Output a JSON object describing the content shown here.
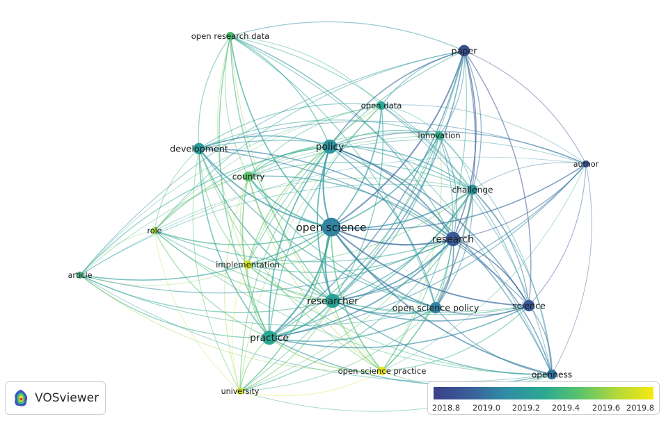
{
  "branding": {
    "app_name": "VOSviewer",
    "logo_icon": "vosviewer-density-logo-icon"
  },
  "colors": {
    "background": "#ffffff",
    "scale": [
      "#3b3f86",
      "#3a5f9b",
      "#2f8ea4",
      "#2ba893",
      "#5cc36b",
      "#b2d93b",
      "#f6e80f"
    ]
  },
  "legend": {
    "ticks": [
      "2018.8",
      "2019.0",
      "2019.2",
      "2019.4",
      "2019.6",
      "2019.8"
    ],
    "min": 2018.7,
    "max": 2019.9
  },
  "nodes": [
    {
      "id": "open research data",
      "label": "open research data",
      "year": 2019.45,
      "weight": 2
    },
    {
      "id": "paper",
      "label": "paper",
      "year": 2018.8,
      "weight": 4
    },
    {
      "id": "open data",
      "label": "open data",
      "year": 2019.3,
      "weight": 2
    },
    {
      "id": "innovation",
      "label": "innovation",
      "year": 2019.35,
      "weight": 2
    },
    {
      "id": "development",
      "label": "development",
      "year": 2019.2,
      "weight": 4
    },
    {
      "id": "policy",
      "label": "policy",
      "year": 2019.15,
      "weight": 6
    },
    {
      "id": "author",
      "label": "author",
      "year": 2018.85,
      "weight": 1
    },
    {
      "id": "country",
      "label": "country",
      "year": 2019.5,
      "weight": 3
    },
    {
      "id": "challenge",
      "label": "challenge",
      "year": 2019.15,
      "weight": 3
    },
    {
      "id": "role",
      "label": "role",
      "year": 2019.65,
      "weight": 1
    },
    {
      "id": "open science",
      "label": "open science",
      "year": 2019.05,
      "weight": 9
    },
    {
      "id": "research",
      "label": "research",
      "year": 2018.85,
      "weight": 6
    },
    {
      "id": "implementation",
      "label": "implementation",
      "year": 2019.8,
      "weight": 2
    },
    {
      "id": "article",
      "label": "article",
      "year": 2019.4,
      "weight": 1
    },
    {
      "id": "researcher",
      "label": "researcher",
      "year": 2019.25,
      "weight": 6
    },
    {
      "id": "open science policy",
      "label": "open science policy",
      "year": 2019.05,
      "weight": 4
    },
    {
      "id": "science",
      "label": "science",
      "year": 2018.85,
      "weight": 4
    },
    {
      "id": "practice",
      "label": "practice",
      "year": 2019.3,
      "weight": 6
    },
    {
      "id": "open science practice",
      "label": "open science practice",
      "year": 2019.85,
      "weight": 2
    },
    {
      "id": "university",
      "label": "university",
      "year": 2019.8,
      "weight": 1
    },
    {
      "id": "openness",
      "label": "openness",
      "year": 2019.0,
      "weight": 3
    }
  ]
}
